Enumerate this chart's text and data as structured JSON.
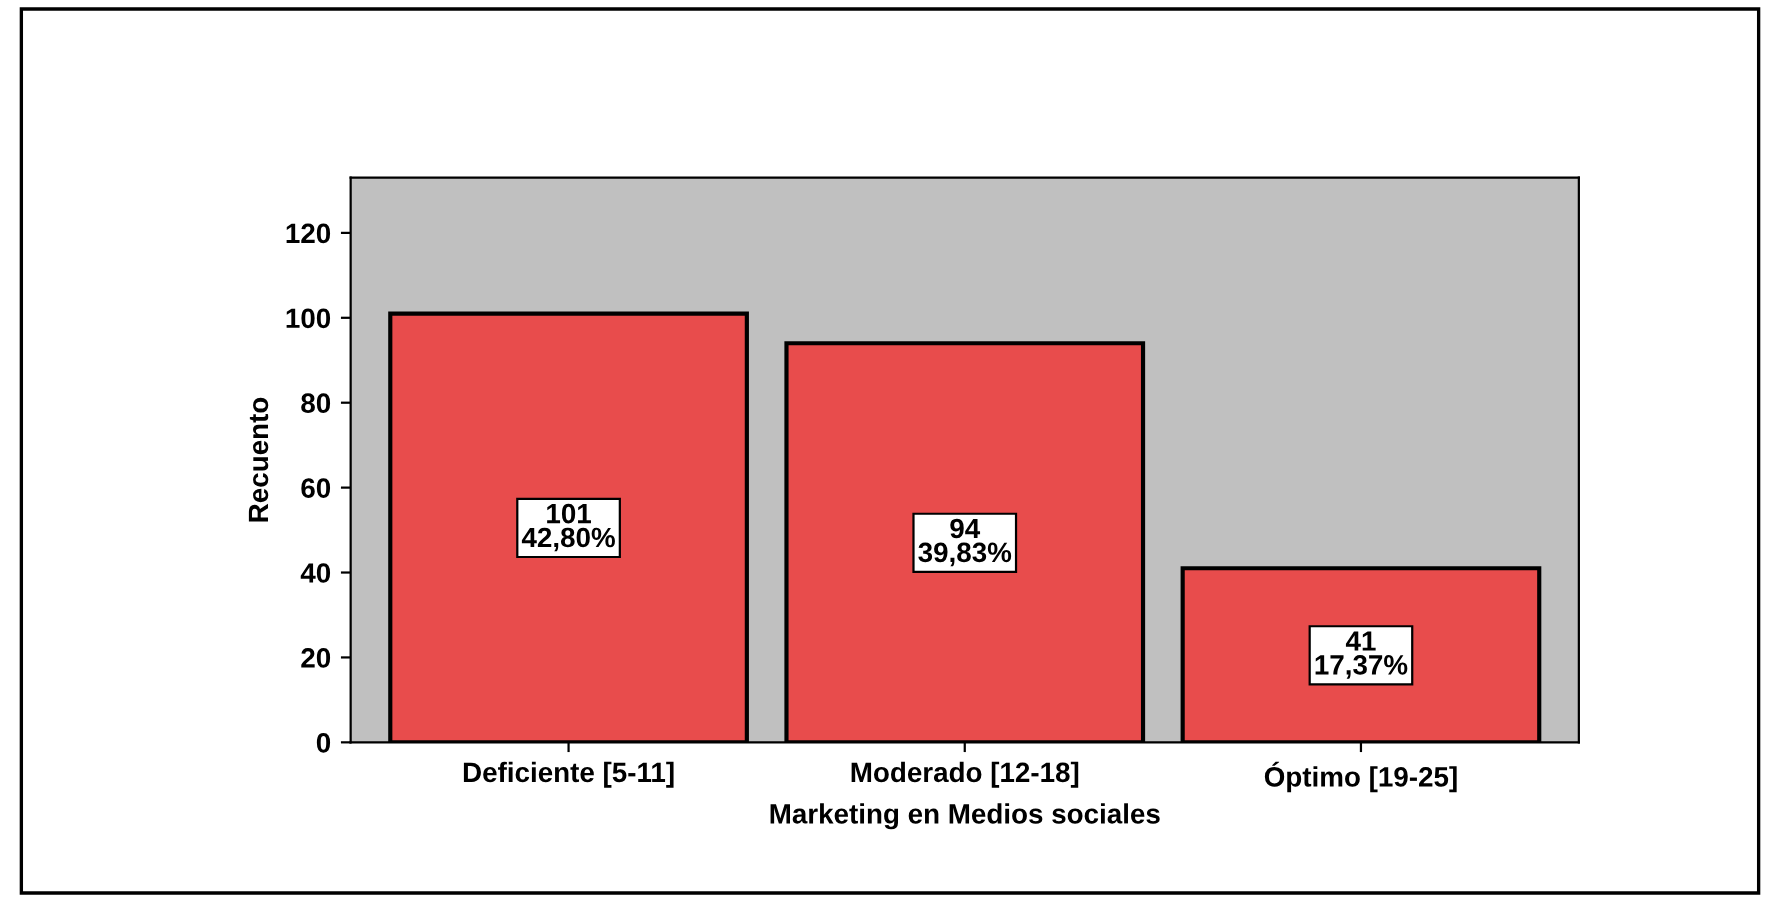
{
  "chart_data": {
    "type": "bar",
    "xlabel": "Marketing en Medios sociales",
    "ylabel": "Recuento",
    "categories": [
      "Deficiente [5-11]",
      "Moderado [12-18]",
      "Óptimo [19-25]"
    ],
    "values": [
      101,
      94,
      41
    ],
    "color": "#e84c4c",
    "value_labels": [
      "101\n42,80%",
      "94\n39,83%",
      "41\n17,37%"
    ],
    "ylim": [
      0,
      133
    ],
    "yticks": [
      0,
      20,
      40,
      60,
      80,
      100,
      120
    ],
    "grid": false
  }
}
